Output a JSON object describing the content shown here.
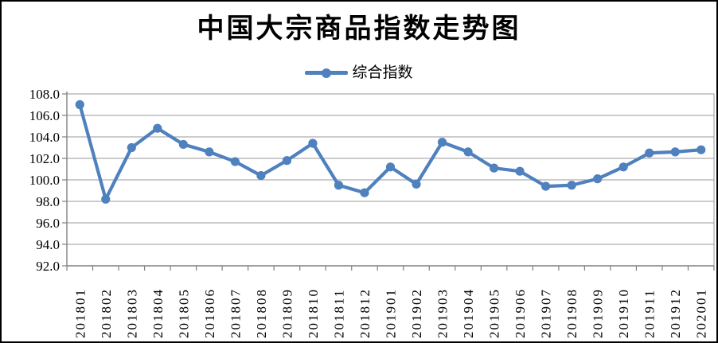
{
  "title": "中国大宗商品指数走势图",
  "legend": {
    "label": "综合指数"
  },
  "colors": {
    "series": "#4E81BD",
    "gridline": "#9A9A9A",
    "axis": "#808080",
    "text": "#000000",
    "background": "#FFFFFF",
    "border": "#000000"
  },
  "chart_data": {
    "type": "line",
    "title": "中国大宗商品指数走势图",
    "categories": [
      "201801",
      "201802",
      "201803",
      "201804",
      "201805",
      "201806",
      "201807",
      "201808",
      "201809",
      "201810",
      "201811",
      "201812",
      "201901",
      "201902",
      "201903",
      "201904",
      "201905",
      "201906",
      "201907",
      "201908",
      "201909",
      "201910",
      "201911",
      "201912",
      "202001"
    ],
    "series": [
      {
        "name": "综合指数",
        "color": "#4E81BD",
        "marker": "circle",
        "values": [
          107.0,
          98.2,
          103.0,
          104.8,
          103.3,
          102.6,
          101.7,
          100.4,
          101.8,
          103.4,
          99.5,
          98.8,
          101.2,
          99.6,
          103.5,
          102.6,
          101.1,
          100.8,
          99.4,
          99.5,
          100.1,
          101.2,
          102.5,
          102.6,
          102.8
        ]
      }
    ],
    "xlabel": "",
    "ylabel": "",
    "ylim": [
      92.0,
      108.0
    ],
    "ytick_step": 2.0,
    "ytick_labels": [
      "92.0",
      "94.0",
      "96.0",
      "98.0",
      "100.0",
      "102.0",
      "104.0",
      "106.0",
      "108.0"
    ],
    "grid": "horizontal",
    "legend_position": "top-center",
    "x_label_rotation_deg": 90
  }
}
